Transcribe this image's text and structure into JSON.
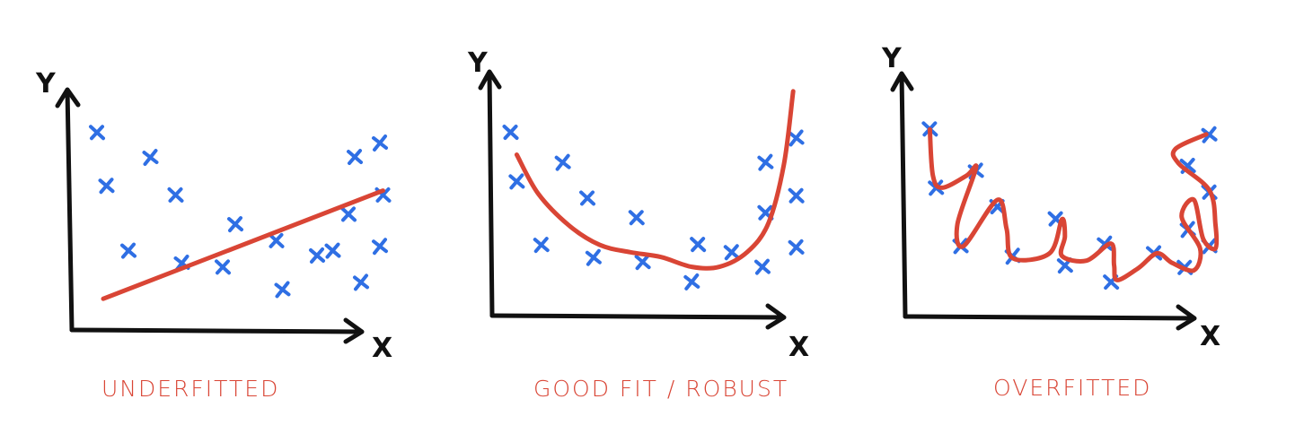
{
  "colors": {
    "axis": "#111111",
    "points": "#2f6fe4",
    "curve": "#d94535",
    "caption": "#d94535"
  },
  "panels": [
    {
      "id": "underfitted",
      "caption": "UNDERFITTED",
      "x_label": "X",
      "y_label": "Y",
      "points": [
        [
          0.08,
          0.82
        ],
        [
          0.11,
          0.6
        ],
        [
          0.25,
          0.72
        ],
        [
          0.33,
          0.56
        ],
        [
          0.18,
          0.33
        ],
        [
          0.35,
          0.28
        ],
        [
          0.48,
          0.26
        ],
        [
          0.52,
          0.44
        ],
        [
          0.67,
          0.17
        ],
        [
          0.65,
          0.37
        ],
        [
          0.83,
          0.33
        ],
        [
          0.92,
          0.2
        ],
        [
          0.88,
          0.48
        ],
        [
          0.9,
          0.72
        ],
        [
          0.98,
          0.78
        ],
        [
          0.99,
          0.56
        ],
        [
          0.78,
          0.31
        ],
        [
          0.98,
          0.35
        ]
      ],
      "fit": {
        "type": "linear",
        "points": [
          [
            0.1,
            0.13
          ],
          [
            0.99,
            0.58
          ]
        ]
      }
    },
    {
      "id": "good-fit",
      "caption": "GOOD FIT / ROBUST",
      "x_label": "X",
      "y_label": "Y",
      "points": [
        [
          0.06,
          0.75
        ],
        [
          0.08,
          0.55
        ],
        [
          0.23,
          0.63
        ],
        [
          0.31,
          0.48
        ],
        [
          0.16,
          0.29
        ],
        [
          0.33,
          0.24
        ],
        [
          0.47,
          0.4
        ],
        [
          0.49,
          0.22
        ],
        [
          0.65,
          0.14
        ],
        [
          0.67,
          0.29
        ],
        [
          0.78,
          0.26
        ],
        [
          0.89,
          0.63
        ],
        [
          0.89,
          0.42
        ],
        [
          0.88,
          0.2
        ],
        [
          0.99,
          0.73
        ],
        [
          0.99,
          0.49
        ],
        [
          0.99,
          0.28
        ]
      ],
      "fit": {
        "type": "curve",
        "points": [
          [
            0.08,
            0.66
          ],
          [
            0.15,
            0.5
          ],
          [
            0.25,
            0.37
          ],
          [
            0.35,
            0.29
          ],
          [
            0.45,
            0.26
          ],
          [
            0.55,
            0.24
          ],
          [
            0.65,
            0.2
          ],
          [
            0.74,
            0.2
          ],
          [
            0.83,
            0.26
          ],
          [
            0.9,
            0.38
          ],
          [
            0.95,
            0.62
          ],
          [
            0.98,
            0.92
          ]
        ]
      }
    },
    {
      "id": "overfitted",
      "caption": "OVERFITTED",
      "x_label": "X",
      "y_label": "Y",
      "points": [
        [
          0.08,
          0.77
        ],
        [
          0.1,
          0.53
        ],
        [
          0.23,
          0.6
        ],
        [
          0.3,
          0.45
        ],
        [
          0.18,
          0.29
        ],
        [
          0.35,
          0.25
        ],
        [
          0.49,
          0.4
        ],
        [
          0.52,
          0.21
        ],
        [
          0.65,
          0.3
        ],
        [
          0.67,
          0.14
        ],
        [
          0.81,
          0.26
        ],
        [
          0.92,
          0.36
        ],
        [
          0.91,
          0.2
        ],
        [
          0.92,
          0.62
        ],
        [
          0.99,
          0.75
        ],
        [
          0.99,
          0.51
        ],
        [
          0.99,
          0.29
        ]
      ],
      "fit": {
        "type": "curve",
        "points": [
          [
            0.08,
            0.77
          ],
          [
            0.09,
            0.58
          ],
          [
            0.12,
            0.53
          ],
          [
            0.2,
            0.58
          ],
          [
            0.23,
            0.61
          ],
          [
            0.17,
            0.38
          ],
          [
            0.19,
            0.29
          ],
          [
            0.3,
            0.48
          ],
          [
            0.33,
            0.36
          ],
          [
            0.35,
            0.24
          ],
          [
            0.47,
            0.26
          ],
          [
            0.51,
            0.4
          ],
          [
            0.52,
            0.33
          ],
          [
            0.51,
            0.25
          ],
          [
            0.59,
            0.23
          ],
          [
            0.67,
            0.3
          ],
          [
            0.68,
            0.21
          ],
          [
            0.69,
            0.15
          ],
          [
            0.76,
            0.2
          ],
          [
            0.82,
            0.26
          ],
          [
            0.87,
            0.22
          ],
          [
            0.94,
            0.19
          ],
          [
            0.96,
            0.28
          ],
          [
            0.9,
            0.41
          ],
          [
            0.94,
            0.48
          ],
          [
            0.97,
            0.32
          ],
          [
            1.01,
            0.28
          ],
          [
            1.01,
            0.38
          ],
          [
            0.99,
            0.52
          ],
          [
            0.89,
            0.63
          ],
          [
            0.88,
            0.69
          ],
          [
            0.98,
            0.75
          ]
        ]
      }
    }
  ]
}
